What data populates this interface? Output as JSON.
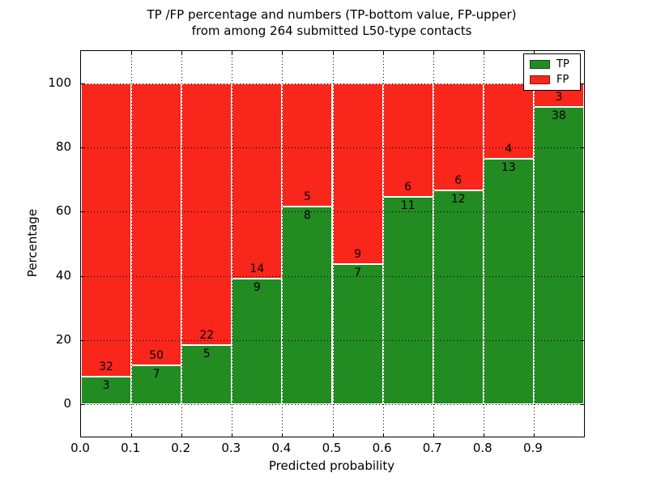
{
  "header": {
    "title_line1": "TP /FP percentage and numbers (TP-bottom value, FP-upper)",
    "title_line2": "from among 264 submitted L50-type contacts"
  },
  "chart_data": {
    "type": "bar",
    "stacked": true,
    "normalized_to": 100,
    "title": "TP /FP percentage and numbers (TP-bottom value, FP-upper)\nfrom among 264 submitted L50-type contacts",
    "xlabel": "Predicted probability",
    "ylabel": "Percentage",
    "total_contacts": 264,
    "categories": [
      "0.0-0.1",
      "0.1-0.2",
      "0.2-0.3",
      "0.3-0.4",
      "0.4-0.5",
      "0.5-0.6",
      "0.6-0.7",
      "0.7-0.8",
      "0.8-0.9",
      "0.9-1.0"
    ],
    "series": [
      {
        "name": "TP",
        "color": "#228b22",
        "values": [
          3,
          7,
          5,
          9,
          8,
          7,
          11,
          12,
          13,
          38
        ]
      },
      {
        "name": "FP",
        "color": "#f8261b",
        "values": [
          32,
          50,
          22,
          14,
          5,
          9,
          6,
          6,
          4,
          3
        ]
      }
    ],
    "tp_percent": [
      8.6,
      12.3,
      18.5,
      39.1,
      61.5,
      43.8,
      64.7,
      66.7,
      76.5,
      92.7
    ],
    "x_ticks": [
      "0.0",
      "0.1",
      "0.2",
      "0.3",
      "0.4",
      "0.5",
      "0.6",
      "0.7",
      "0.8",
      "0.9"
    ],
    "y_ticks": [
      "0",
      "20",
      "40",
      "60",
      "80",
      "100"
    ],
    "xlim": [
      0.0,
      1.0
    ],
    "ylim": [
      -10,
      110
    ],
    "grid": true,
    "grid_style": "dotted",
    "legend": {
      "position": "upper right",
      "entries": [
        "TP",
        "FP"
      ]
    },
    "annotation_note": "TP count below segment boundary, FP count above segment boundary"
  },
  "colors": {
    "tp_green": "#228b22",
    "fp_red": "#f8261b",
    "background": "#ffffff",
    "text": "#000000"
  }
}
